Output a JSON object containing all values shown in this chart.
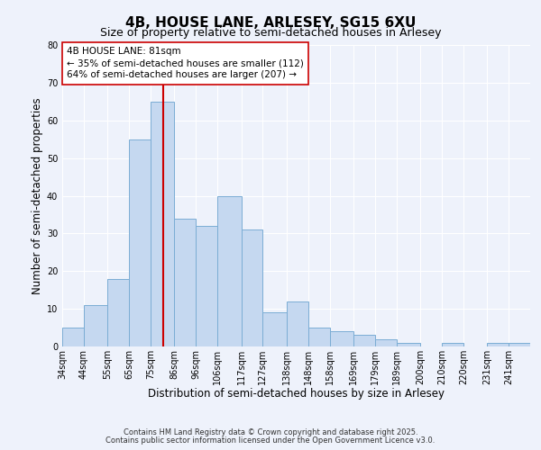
{
  "title": "4B, HOUSE LANE, ARLESEY, SG15 6XU",
  "subtitle": "Size of property relative to semi-detached houses in Arlesey",
  "xlabel": "Distribution of semi-detached houses by size in Arlesey",
  "ylabel": "Number of semi-detached properties",
  "bins": [
    "34sqm",
    "44sqm",
    "55sqm",
    "65sqm",
    "75sqm",
    "86sqm",
    "96sqm",
    "106sqm",
    "117sqm",
    "127sqm",
    "138sqm",
    "148sqm",
    "158sqm",
    "169sqm",
    "179sqm",
    "189sqm",
    "200sqm",
    "210sqm",
    "220sqm",
    "231sqm",
    "241sqm"
  ],
  "bin_edges": [
    34,
    44,
    55,
    65,
    75,
    86,
    96,
    106,
    117,
    127,
    138,
    148,
    158,
    169,
    179,
    189,
    200,
    210,
    220,
    231,
    241,
    251
  ],
  "values": [
    5,
    11,
    18,
    55,
    65,
    34,
    32,
    40,
    31,
    9,
    12,
    5,
    4,
    3,
    2,
    1,
    0,
    1,
    0,
    1,
    1
  ],
  "bar_color": "#c5d8f0",
  "bar_edge_color": "#7badd4",
  "vline_x": 81,
  "vline_color": "#cc0000",
  "annotation_title": "4B HOUSE LANE: 81sqm",
  "annotation_line1": "← 35% of semi-detached houses are smaller (112)",
  "annotation_line2": "64% of semi-detached houses are larger (207) →",
  "annotation_box_color": "#ffffff",
  "annotation_box_edge": "#cc0000",
  "ylim": [
    0,
    80
  ],
  "yticks": [
    0,
    10,
    20,
    30,
    40,
    50,
    60,
    70,
    80
  ],
  "background_color": "#eef2fb",
  "footer1": "Contains HM Land Registry data © Crown copyright and database right 2025.",
  "footer2": "Contains public sector information licensed under the Open Government Licence v3.0.",
  "title_fontsize": 11,
  "subtitle_fontsize": 9,
  "axis_label_fontsize": 8.5,
  "tick_fontsize": 7,
  "annotation_fontsize": 7.5,
  "footer_fontsize": 6
}
